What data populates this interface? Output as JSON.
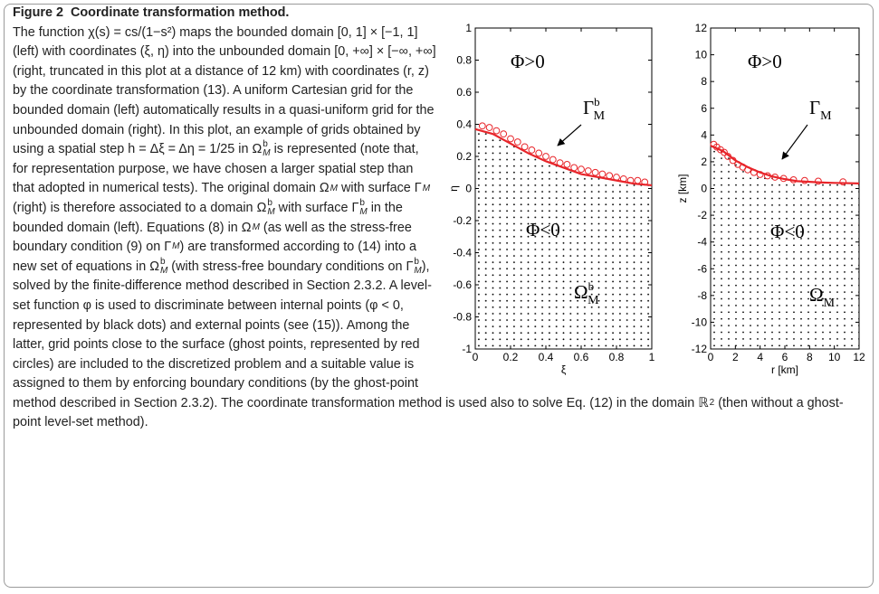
{
  "caption": {
    "label": "Figure 2",
    "title": "Coordinate transformation method.",
    "body": [
      "The function χ(s) = cs/(1−s²) maps the bounded domain [0, 1] × [−1, 1] (left) with coordinates (ξ, η) into the unbounded domain [0, +∞] × [−∞, +∞] (right, truncated in this plot at a distance of 12 km) with coordinates (r, z) by the coordinate transformation (13). A uniform Cartesian grid for the bounded domain (left) automatically results in a quasi-uniform grid for the unbounded domain (right). In this plot, an example of grids obtained by using a spatial step h = Δξ = Δη = 1/25 in ",
      {
        "text": "Ω",
        "sub": "M",
        "sup": "b"
      },
      " is represented (note that, for representation purpose, we have chosen a larger spatial step than that adopted in numerical tests). The original domain ",
      {
        "text": "Ω",
        "sub": "M"
      },
      " with surface ",
      {
        "text": "Γ",
        "sub": "M"
      },
      " (right) is therefore associated to a domain ",
      {
        "text": "Ω",
        "sub": "M",
        "sup": "b"
      },
      " with surface ",
      {
        "text": "Γ",
        "sub": "M",
        "sup": "b"
      },
      " in the bounded domain (left). Equations (8) in ",
      {
        "text": "Ω",
        "sub": "M"
      },
      " (as well as the stress-free boundary condition (9) on ",
      {
        "text": "Γ",
        "sub": "M"
      },
      ") are transformed according to (14) into a new set of equations in ",
      {
        "text": "Ω",
        "sub": "M",
        "sup": "b"
      },
      " (with stress-free boundary conditions on ",
      {
        "text": "Γ",
        "sub": "M",
        "sup": "b"
      },
      "), solved by the finite-difference method described in Section 2.3.2. A level-set function ",
      {
        "text": "φ"
      },
      " is used to discriminate between internal points (",
      {
        "text": "φ"
      },
      " < 0, represented by black dots) and external points (see (15)). Among the latter, grid points close to the surface (ghost points, represented by red circles) are included to the discretized problem and a suitable value is assigned to them by enforcing boundary conditions (by the ghost-point method described in Section 2.3.2). The coordinate transformation method is used also to solve Eq. (12) in the domain ",
      {
        "text": "ℝ",
        "sup": "2"
      },
      " (then without a ghost-point level-set method)."
    ]
  },
  "chart_data": [
    {
      "type": "line",
      "xlabel": "ξ",
      "ylabel": "η",
      "xlim": [
        0,
        1
      ],
      "xticks": [
        0,
        0.2,
        0.4,
        0.6,
        0.8,
        1
      ],
      "ylim": [
        -1,
        1
      ],
      "yticks": [
        -1,
        -0.8,
        -0.6,
        -0.4,
        -0.2,
        0,
        0.2,
        0.4,
        0.6,
        0.8,
        1
      ],
      "series": [
        {
          "kind": "line",
          "color": "#e8252a",
          "x": [
            0,
            0.1,
            0.2,
            0.3,
            0.4,
            0.5,
            0.6,
            0.7,
            0.8,
            0.9,
            1
          ],
          "values": [
            0.37,
            0.34,
            0.28,
            0.22,
            0.17,
            0.13,
            0.09,
            0.07,
            0.05,
            0.03,
            0.02
          ]
        },
        {
          "kind": "markers",
          "color": "#e8252a",
          "x": [
            0.04,
            0.08,
            0.12,
            0.16,
            0.2,
            0.24,
            0.28,
            0.32,
            0.36,
            0.4,
            0.44,
            0.48,
            0.52,
            0.56,
            0.6,
            0.64,
            0.68,
            0.72,
            0.76,
            0.8,
            0.84,
            0.88,
            0.92,
            0.96
          ],
          "values": [
            0.39,
            0.38,
            0.36,
            0.34,
            0.31,
            0.29,
            0.26,
            0.24,
            0.22,
            0.2,
            0.18,
            0.16,
            0.15,
            0.13,
            0.12,
            0.11,
            0.1,
            0.09,
            0.08,
            0.07,
            0.06,
            0.05,
            0.05,
            0.04
          ]
        }
      ],
      "annotations": [
        {
          "text": "Φ>0"
        },
        {
          "text": "Γ",
          "sub": "M",
          "sup": "b"
        },
        {
          "text": "Φ<0"
        },
        {
          "text": "Ω",
          "sub": "M",
          "sup": "b"
        }
      ]
    },
    {
      "type": "line",
      "xlabel": "r [km]",
      "ylabel": "z [km]",
      "xlim": [
        0,
        12
      ],
      "xticks": [
        0,
        2,
        4,
        6,
        8,
        10,
        12
      ],
      "ylim": [
        -12,
        12
      ],
      "yticks": [
        -12,
        -10,
        -8,
        -6,
        -4,
        -2,
        0,
        2,
        4,
        6,
        8,
        10,
        12
      ],
      "series": [
        {
          "kind": "line",
          "color": "#e8252a",
          "x": [
            0,
            1,
            2,
            3,
            4,
            5,
            6,
            7,
            8,
            9,
            10,
            11,
            12
          ],
          "values": [
            3.2,
            2.8,
            2.1,
            1.6,
            1.2,
            0.9,
            0.7,
            0.55,
            0.5,
            0.45,
            0.42,
            0.4,
            0.38
          ]
        },
        {
          "kind": "markers",
          "color": "#e8252a",
          "x": [
            0.25,
            0.5,
            0.8,
            1.1,
            1.4,
            1.8,
            2.2,
            2.6,
            3.0,
            3.5,
            4.0,
            4.6,
            5.2,
            5.9,
            6.7,
            7.6,
            8.7,
            10.7
          ],
          "values": [
            3.3,
            3.1,
            2.9,
            2.7,
            2.4,
            2.1,
            1.8,
            1.6,
            1.4,
            1.2,
            1.05,
            0.95,
            0.85,
            0.75,
            0.65,
            0.6,
            0.55,
            0.5
          ]
        }
      ],
      "annotations": [
        {
          "text": "Φ>0"
        },
        {
          "text": "Γ",
          "sub": "M"
        },
        {
          "text": "Φ<0"
        },
        {
          "text": "Ω",
          "sub": "M"
        }
      ]
    }
  ]
}
